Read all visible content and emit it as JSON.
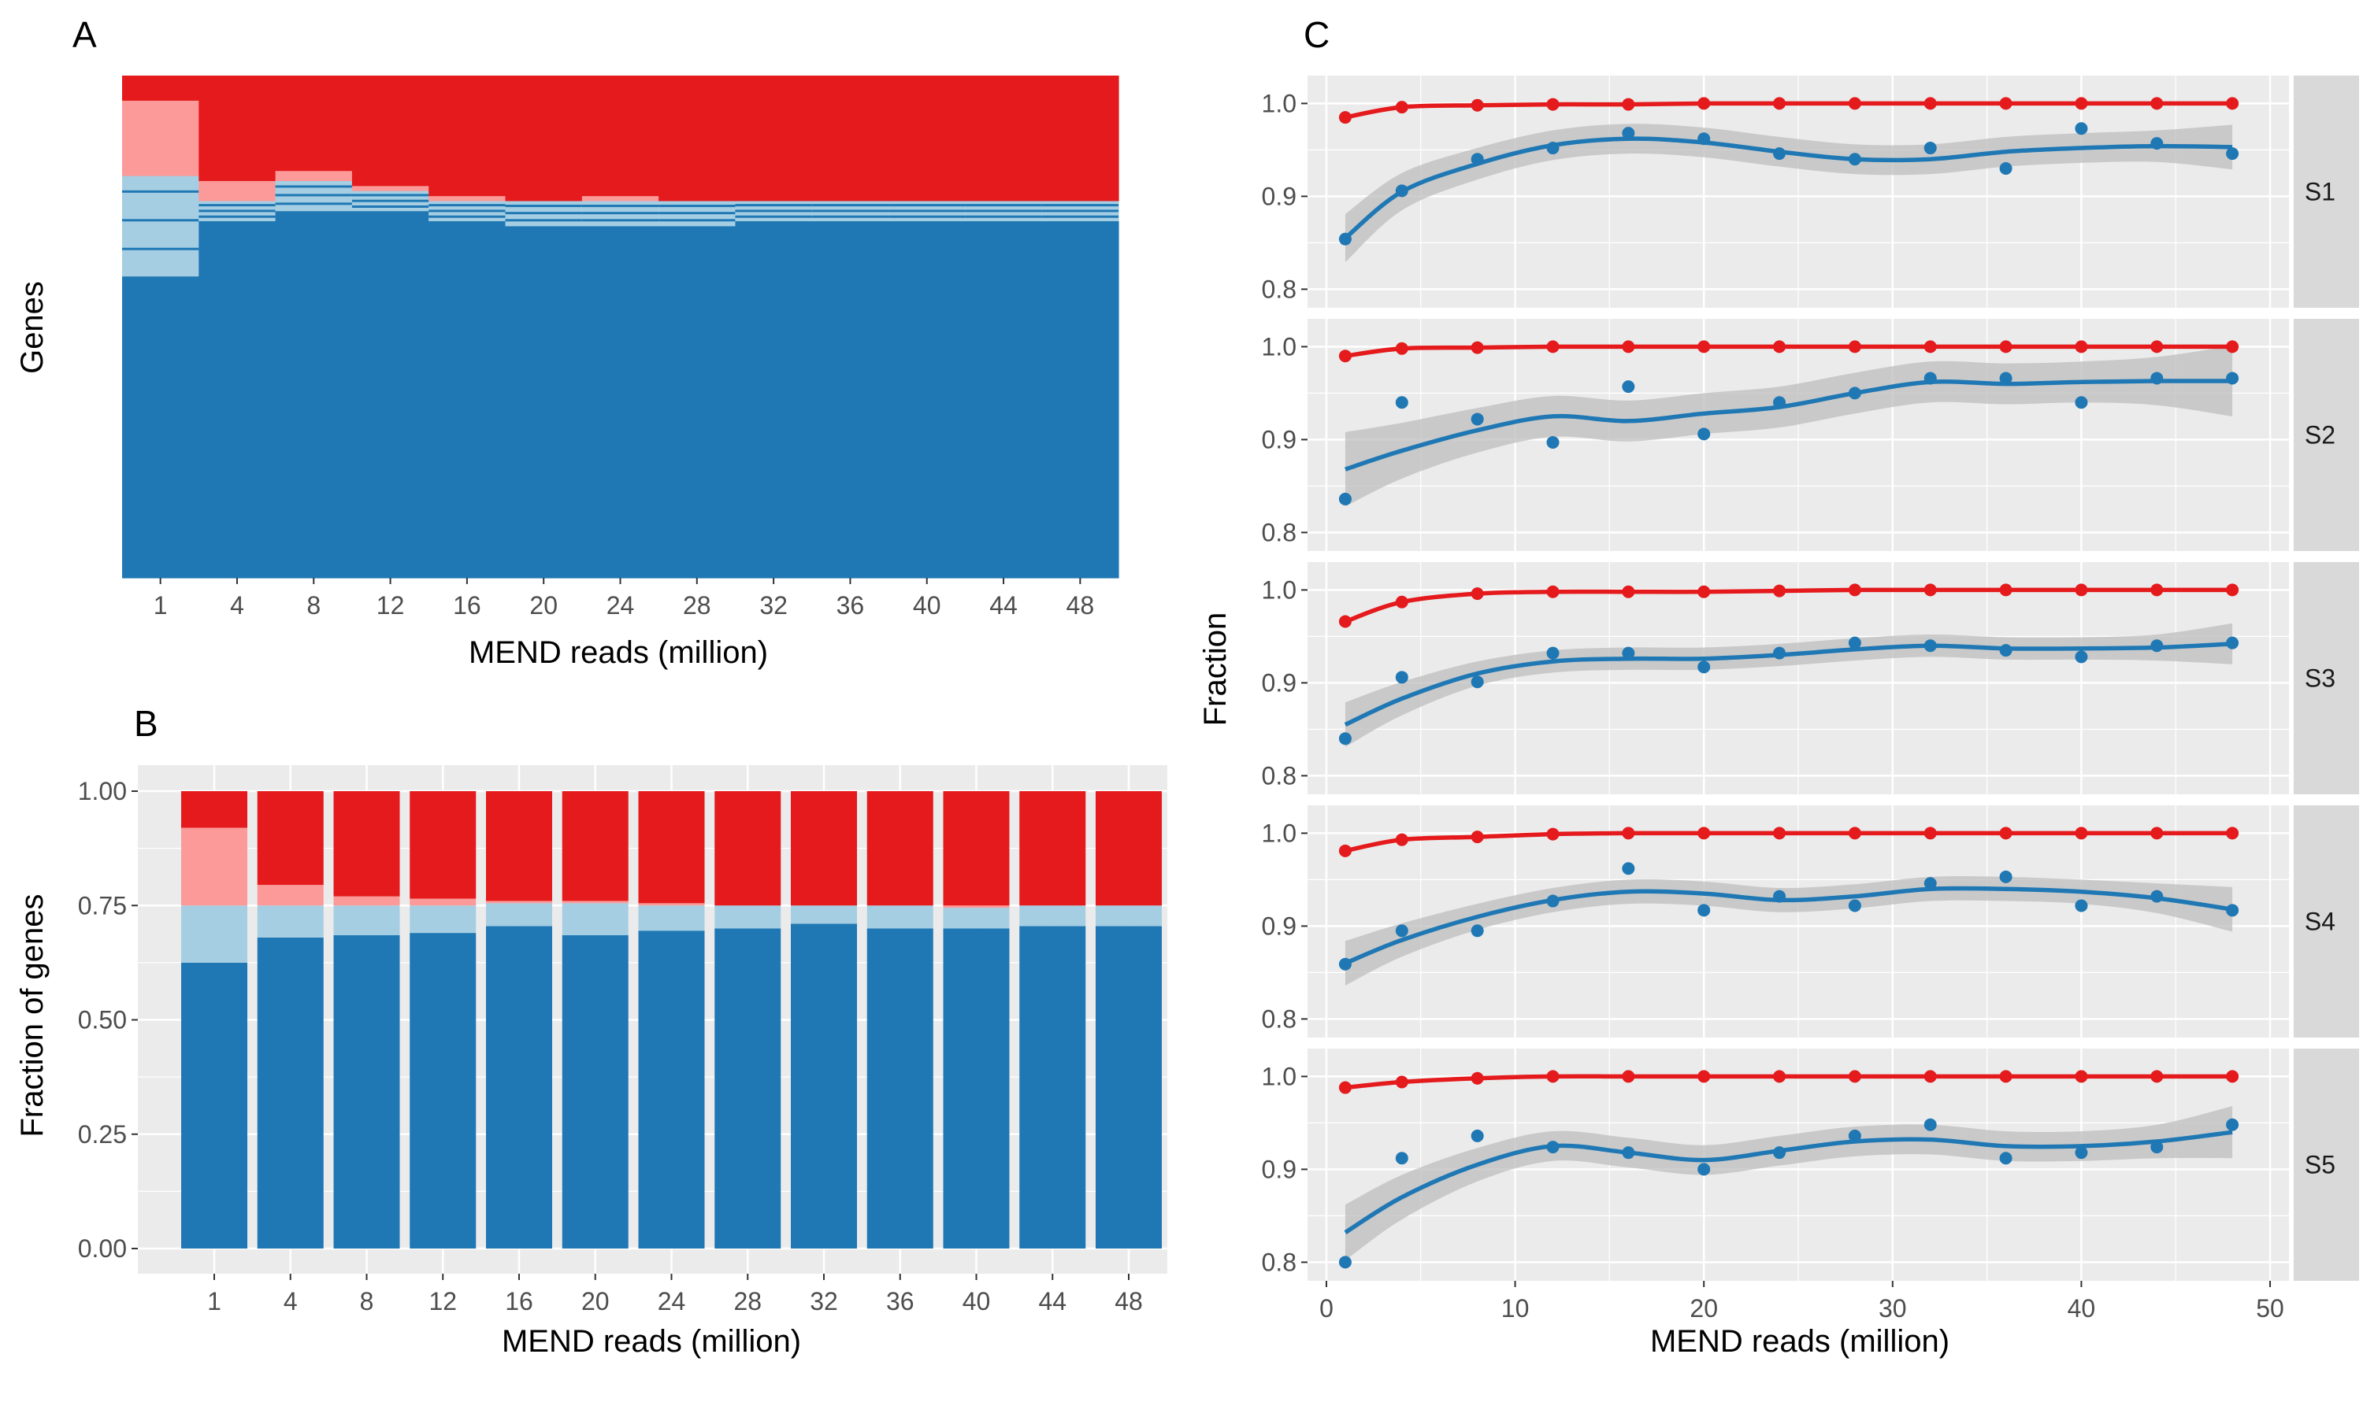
{
  "colors": {
    "dark_red": "#E41A1C",
    "light_red": "#FB9A99",
    "light_blue": "#A6CEE3",
    "dark_blue": "#1F78B4",
    "panel_bg": "#EBEBEB",
    "grid": "#FFFFFF",
    "strip_bg": "#D9D9D9",
    "ribbon": "#BDBDBD"
  },
  "panels": {
    "A": {
      "label": "A"
    },
    "B": {
      "label": "B"
    },
    "C": {
      "label": "C"
    }
  },
  "chart_data": [
    {
      "id": "A",
      "type": "heatmap",
      "xlabel": "MEND reads (million)",
      "ylabel": "Genes",
      "x_ticks": [
        "1",
        "4",
        "8",
        "12",
        "16",
        "20",
        "24",
        "28",
        "32",
        "36",
        "40",
        "44",
        "48"
      ],
      "columns": [
        {
          "dark_red": 0.05,
          "light_red": 0.15,
          "light_blue": 0.2,
          "dark_blue": 0.6
        },
        {
          "dark_red": 0.21,
          "light_red": 0.04,
          "light_blue": 0.04,
          "dark_blue": 0.71
        },
        {
          "dark_red": 0.19,
          "light_red": 0.02,
          "light_blue": 0.06,
          "dark_blue": 0.73
        },
        {
          "dark_red": 0.22,
          "light_red": 0.01,
          "light_blue": 0.04,
          "dark_blue": 0.73
        },
        {
          "dark_red": 0.24,
          "light_red": 0.01,
          "light_blue": 0.04,
          "dark_blue": 0.71
        },
        {
          "dark_red": 0.25,
          "light_red": 0.0,
          "light_blue": 0.05,
          "dark_blue": 0.7
        },
        {
          "dark_red": 0.24,
          "light_red": 0.01,
          "light_blue": 0.05,
          "dark_blue": 0.7
        },
        {
          "dark_red": 0.25,
          "light_red": 0.0,
          "light_blue": 0.05,
          "dark_blue": 0.7
        },
        {
          "dark_red": 0.25,
          "light_red": 0.0,
          "light_blue": 0.04,
          "dark_blue": 0.71
        },
        {
          "dark_red": 0.25,
          "light_red": 0.0,
          "light_blue": 0.04,
          "dark_blue": 0.71
        },
        {
          "dark_red": 0.25,
          "light_red": 0.0,
          "light_blue": 0.04,
          "dark_blue": 0.71
        },
        {
          "dark_red": 0.25,
          "light_red": 0.0,
          "light_blue": 0.04,
          "dark_blue": 0.71
        },
        {
          "dark_red": 0.25,
          "light_red": 0.0,
          "light_blue": 0.04,
          "dark_blue": 0.71
        }
      ]
    },
    {
      "id": "B",
      "type": "bar",
      "stacked": true,
      "xlabel": "MEND reads (million)",
      "ylabel": "Fraction of genes",
      "ylim": [
        0,
        1
      ],
      "y_ticks": [
        "0.00",
        "0.25",
        "0.50",
        "0.75",
        "1.00"
      ],
      "categories": [
        "1",
        "4",
        "8",
        "12",
        "16",
        "20",
        "24",
        "28",
        "32",
        "36",
        "40",
        "44",
        "48"
      ],
      "series": [
        {
          "color_key": "dark_blue",
          "values": [
            0.625,
            0.68,
            0.685,
            0.69,
            0.705,
            0.685,
            0.695,
            0.7,
            0.71,
            0.7,
            0.7,
            0.705,
            0.705
          ]
        },
        {
          "color_key": "light_blue",
          "values": [
            0.125,
            0.07,
            0.065,
            0.06,
            0.05,
            0.07,
            0.055,
            0.05,
            0.04,
            0.05,
            0.045,
            0.045,
            0.045
          ]
        },
        {
          "color_key": "light_red",
          "values": [
            0.17,
            0.045,
            0.02,
            0.015,
            0.005,
            0.005,
            0.005,
            0.0,
            0.0,
            0.0,
            0.005,
            0.0,
            0.0
          ]
        },
        {
          "color_key": "dark_red",
          "values": [
            0.08,
            0.205,
            0.23,
            0.235,
            0.24,
            0.24,
            0.245,
            0.25,
            0.25,
            0.25,
            0.25,
            0.25,
            0.25
          ]
        }
      ]
    },
    {
      "id": "C",
      "type": "scatter",
      "xlabel": "MEND reads (million)",
      "ylabel": "Fraction",
      "xlim": [
        -1,
        51
      ],
      "ylim": [
        0.78,
        1.03
      ],
      "x_ticks": [
        0,
        10,
        20,
        30,
        40,
        50
      ],
      "y_ticks": [
        "0.8",
        "0.9",
        "1.0"
      ],
      "x": [
        1,
        4,
        8,
        12,
        16,
        20,
        24,
        28,
        32,
        36,
        40,
        44,
        48
      ],
      "facets": [
        {
          "label": "S1",
          "red": [
            0.985,
            0.996,
            0.998,
            0.999,
            0.999,
            1.0,
            1.0,
            1.0,
            1.0,
            1.0,
            1.0,
            1.0,
            1.0
          ],
          "blue": [
            0.854,
            0.906,
            0.94,
            0.952,
            0.968,
            0.962,
            0.946,
            0.94,
            0.952,
            0.93,
            0.973,
            0.957,
            0.946
          ],
          "blue_fit": [
            0.855,
            0.905,
            0.935,
            0.955,
            0.962,
            0.958,
            0.948,
            0.94,
            0.94,
            0.948,
            0.952,
            0.954,
            0.953
          ],
          "band_halfwidth": [
            0.026,
            0.02,
            0.017,
            0.016,
            0.016,
            0.016,
            0.016,
            0.016,
            0.016,
            0.016,
            0.016,
            0.017,
            0.024
          ]
        },
        {
          "label": "S2",
          "red": [
            0.99,
            0.998,
            0.999,
            1.0,
            1.0,
            1.0,
            1.0,
            1.0,
            1.0,
            1.0,
            1.0,
            1.0,
            1.0
          ],
          "blue": [
            0.836,
            0.94,
            0.922,
            0.897,
            0.957,
            0.906,
            0.94,
            0.95,
            0.966,
            0.966,
            0.94,
            0.966,
            0.966
          ],
          "blue_fit": [
            0.868,
            0.888,
            0.91,
            0.925,
            0.92,
            0.928,
            0.935,
            0.95,
            0.962,
            0.96,
            0.962,
            0.963,
            0.963
          ],
          "band_halfwidth": [
            0.04,
            0.03,
            0.024,
            0.022,
            0.022,
            0.022,
            0.022,
            0.022,
            0.022,
            0.022,
            0.022,
            0.026,
            0.038
          ]
        },
        {
          "label": "S3",
          "red": [
            0.966,
            0.987,
            0.996,
            0.998,
            0.998,
            0.998,
            0.999,
            1.0,
            1.0,
            1.0,
            1.0,
            1.0,
            1.0
          ],
          "blue": [
            0.84,
            0.906,
            0.901,
            0.932,
            0.932,
            0.917,
            0.932,
            0.943,
            0.94,
            0.935,
            0.928,
            0.94,
            0.943
          ],
          "blue_fit": [
            0.855,
            0.883,
            0.91,
            0.923,
            0.926,
            0.926,
            0.93,
            0.936,
            0.94,
            0.937,
            0.937,
            0.938,
            0.942
          ],
          "band_halfwidth": [
            0.024,
            0.018,
            0.013,
            0.012,
            0.012,
            0.012,
            0.012,
            0.012,
            0.012,
            0.012,
            0.012,
            0.014,
            0.022
          ]
        },
        {
          "label": "S4",
          "red": [
            0.981,
            0.993,
            0.996,
            0.999,
            1.0,
            1.0,
            1.0,
            1.0,
            1.0,
            1.0,
            1.0,
            1.0,
            1.0
          ],
          "blue": [
            0.859,
            0.895,
            0.895,
            0.927,
            0.962,
            0.917,
            0.932,
            0.922,
            0.946,
            0.953,
            0.922,
            0.932,
            0.917
          ],
          "blue_fit": [
            0.86,
            0.885,
            0.91,
            0.928,
            0.937,
            0.935,
            0.928,
            0.932,
            0.94,
            0.94,
            0.937,
            0.93,
            0.918
          ],
          "band_halfwidth": [
            0.024,
            0.018,
            0.014,
            0.013,
            0.013,
            0.013,
            0.013,
            0.013,
            0.013,
            0.013,
            0.013,
            0.016,
            0.024
          ]
        },
        {
          "label": "S5",
          "red": [
            0.988,
            0.994,
            0.998,
            1.0,
            1.0,
            1.0,
            1.0,
            1.0,
            1.0,
            1.0,
            1.0,
            1.0,
            1.0
          ],
          "blue": [
            0.8,
            0.912,
            0.936,
            0.924,
            0.918,
            0.9,
            0.918,
            0.936,
            0.948,
            0.912,
            0.918,
            0.924,
            0.948
          ],
          "blue_fit": [
            0.832,
            0.87,
            0.905,
            0.925,
            0.918,
            0.91,
            0.92,
            0.93,
            0.932,
            0.925,
            0.925,
            0.93,
            0.94
          ],
          "band_halfwidth": [
            0.03,
            0.024,
            0.018,
            0.016,
            0.016,
            0.016,
            0.016,
            0.016,
            0.016,
            0.016,
            0.016,
            0.018,
            0.028
          ]
        }
      ]
    }
  ]
}
